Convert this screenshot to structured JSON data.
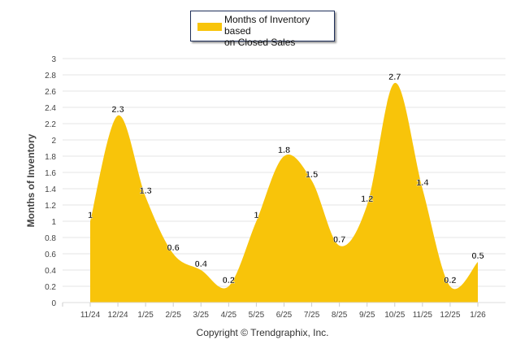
{
  "chart_data": {
    "type": "area",
    "title": "",
    "xlabel": "",
    "ylabel": "Months of Inventory",
    "categories": [
      "11/24",
      "12/24",
      "1/25",
      "2/25",
      "3/25",
      "4/25",
      "5/25",
      "6/25",
      "7/25",
      "8/25",
      "9/25",
      "10/25",
      "11/25",
      "12/25",
      "1/26"
    ],
    "series": [
      {
        "name": "Months of Inventory based on Closed Sales",
        "values": [
          1,
          2.3,
          1.3,
          0.6,
          0.4,
          0.2,
          1,
          1.8,
          1.5,
          0.7,
          1.2,
          2.7,
          1.4,
          0.2,
          0.5
        ],
        "color": "#F8C40A"
      }
    ],
    "ylim": [
      0,
      3
    ],
    "yticks": [
      "0",
      "0.2",
      "0.4",
      "0.6",
      "0.8",
      "1",
      "1.2",
      "1.4",
      "1.6",
      "1.8",
      "2",
      "2.2",
      "2.4",
      "2.6",
      "2.8",
      "3"
    ],
    "grid": true,
    "legend": "top-center",
    "data_labels": [
      "1",
      "2.3",
      "1.3",
      "0.6",
      "0.4",
      "0.2",
      "1",
      "1.8",
      "1.5",
      "0.7",
      "1.2",
      "2.7",
      "1.4",
      "0.2",
      "0.5"
    ]
  },
  "legend_label_line1": "Months of Inventory based",
  "legend_label_line2": "on Closed Sales",
  "copyright": "Copyright © Trendgraphix, Inc."
}
